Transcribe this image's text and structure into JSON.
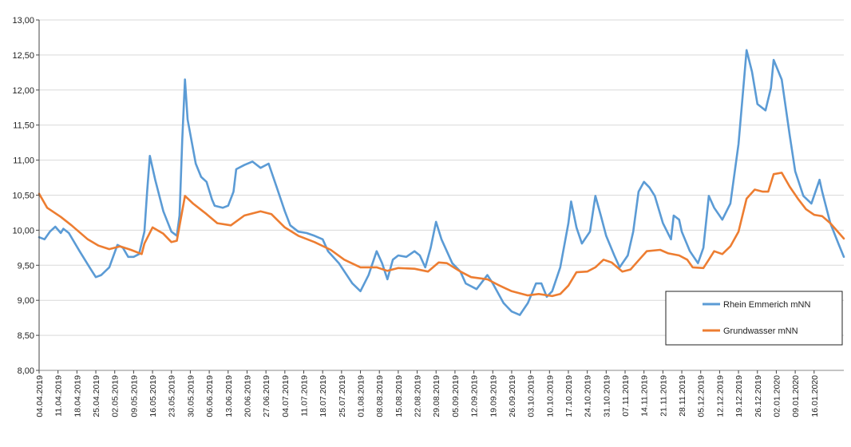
{
  "chart_data": {
    "type": "line",
    "title": "",
    "xlabel": "",
    "ylabel": "",
    "x_unit": "days since 04.04.2019",
    "xlim": [
      0,
      298
    ],
    "ylim": [
      8.0,
      13.0
    ],
    "y_ticks": [
      "8,00",
      "8,50",
      "9,00",
      "9,50",
      "10,00",
      "10,50",
      "11,00",
      "11,50",
      "12,00",
      "12,50",
      "13,00"
    ],
    "y_tick_values": [
      8,
      8.5,
      9,
      9.5,
      10,
      10.5,
      11,
      11.5,
      12,
      12.5,
      13
    ],
    "x_ticks": [
      "04.04.2019",
      "11.04.2019",
      "18.04.2019",
      "25.04.2019",
      "02.05.2019",
      "09.05.2019",
      "16.05.2019",
      "23.05.2019",
      "30.05.2019",
      "06.06.2019",
      "13.06.2019",
      "20.06.2019",
      "27.06.2019",
      "04.07.2019",
      "11.07.2019",
      "18.07.2019",
      "25.07.2019",
      "01.08.2019",
      "08.08.2019",
      "15.08.2019",
      "22.08.2019",
      "29.08.2019",
      "05.09.2019",
      "12.09.2019",
      "19.09.2019",
      "26.09.2019",
      "03.10.2019",
      "10.10.2019",
      "17.10.2019",
      "24.10.2019",
      "31.10.2019",
      "07.11.2019",
      "14.11.2019",
      "21.11.2019",
      "28.11.2019",
      "05.12.2019",
      "12.12.2019",
      "19.12.2019",
      "26.12.2019",
      "02.01.2020",
      "09.01.2020",
      "16.01.2020"
    ],
    "x_tick_step_days": 7,
    "grid": true,
    "legend_position": "bottom-right",
    "series": [
      {
        "name": "Rhein Emmerich mNN",
        "color": "#5b9bd5",
        "points": [
          [
            0,
            9.9
          ],
          [
            2,
            9.87
          ],
          [
            4,
            9.98
          ],
          [
            6,
            10.05
          ],
          [
            8,
            9.96
          ],
          [
            9,
            10.02
          ],
          [
            11,
            9.96
          ],
          [
            15,
            9.7
          ],
          [
            19,
            9.45
          ],
          [
            21,
            9.33
          ],
          [
            23,
            9.36
          ],
          [
            26,
            9.47
          ],
          [
            29,
            9.79
          ],
          [
            31,
            9.75
          ],
          [
            33,
            9.62
          ],
          [
            35,
            9.62
          ],
          [
            37,
            9.66
          ],
          [
            39,
            9.98
          ],
          [
            40,
            10.55
          ],
          [
            41,
            11.06
          ],
          [
            43,
            10.72
          ],
          [
            46,
            10.27
          ],
          [
            49,
            9.98
          ],
          [
            51,
            9.92
          ],
          [
            52,
            10.21
          ],
          [
            53,
            11.29
          ],
          [
            54,
            12.15
          ],
          [
            55,
            11.58
          ],
          [
            58,
            10.95
          ],
          [
            60,
            10.76
          ],
          [
            62,
            10.69
          ],
          [
            64,
            10.44
          ],
          [
            65,
            10.35
          ],
          [
            68,
            10.32
          ],
          [
            70,
            10.35
          ],
          [
            72,
            10.55
          ],
          [
            73,
            10.87
          ],
          [
            76,
            10.93
          ],
          [
            79,
            10.98
          ],
          [
            82,
            10.89
          ],
          [
            85,
            10.95
          ],
          [
            88,
            10.61
          ],
          [
            91,
            10.27
          ],
          [
            93,
            10.07
          ],
          [
            96,
            9.98
          ],
          [
            99,
            9.96
          ],
          [
            102,
            9.92
          ],
          [
            105,
            9.87
          ],
          [
            107,
            9.7
          ],
          [
            111,
            9.53
          ],
          [
            116,
            9.24
          ],
          [
            119,
            9.13
          ],
          [
            122,
            9.36
          ],
          [
            125,
            9.7
          ],
          [
            127,
            9.53
          ],
          [
            129,
            9.3
          ],
          [
            131,
            9.58
          ],
          [
            133,
            9.64
          ],
          [
            136,
            9.62
          ],
          [
            139,
            9.7
          ],
          [
            141,
            9.64
          ],
          [
            143,
            9.47
          ],
          [
            145,
            9.75
          ],
          [
            147,
            10.12
          ],
          [
            149,
            9.87
          ],
          [
            153,
            9.53
          ],
          [
            156,
            9.41
          ],
          [
            158,
            9.24
          ],
          [
            162,
            9.16
          ],
          [
            166,
            9.36
          ],
          [
            168,
            9.24
          ],
          [
            172,
            8.96
          ],
          [
            175,
            8.84
          ],
          [
            178,
            8.79
          ],
          [
            181,
            8.96
          ],
          [
            184,
            9.24
          ],
          [
            186,
            9.24
          ],
          [
            188,
            9.05
          ],
          [
            190,
            9.13
          ],
          [
            193,
            9.47
          ],
          [
            196,
            10.1
          ],
          [
            197,
            10.41
          ],
          [
            199,
            10.04
          ],
          [
            201,
            9.81
          ],
          [
            204,
            9.98
          ],
          [
            206,
            10.49
          ],
          [
            208,
            10.21
          ],
          [
            210,
            9.92
          ],
          [
            213,
            9.64
          ],
          [
            215,
            9.47
          ],
          [
            218,
            9.64
          ],
          [
            220,
            9.98
          ],
          [
            222,
            10.55
          ],
          [
            224,
            10.69
          ],
          [
            226,
            10.61
          ],
          [
            228,
            10.49
          ],
          [
            231,
            10.1
          ],
          [
            234,
            9.87
          ],
          [
            235,
            10.21
          ],
          [
            237,
            10.15
          ],
          [
            238,
            9.98
          ],
          [
            241,
            9.7
          ],
          [
            244,
            9.53
          ],
          [
            246,
            9.75
          ],
          [
            248,
            10.49
          ],
          [
            250,
            10.32
          ],
          [
            253,
            10.15
          ],
          [
            256,
            10.38
          ],
          [
            259,
            11.23
          ],
          [
            262,
            12.57
          ],
          [
            264,
            12.26
          ],
          [
            266,
            11.8
          ],
          [
            269,
            11.71
          ],
          [
            271,
            12.03
          ],
          [
            272,
            12.43
          ],
          [
            275,
            12.15
          ],
          [
            278,
            11.35
          ],
          [
            280,
            10.84
          ],
          [
            283,
            10.49
          ],
          [
            286,
            10.38
          ],
          [
            289,
            10.72
          ],
          [
            290,
            10.55
          ],
          [
            293,
            10.1
          ],
          [
            296,
            9.81
          ],
          [
            298,
            9.62
          ]
        ]
      },
      {
        "name": "Grundwasser mNN",
        "color": "#ed7d31",
        "points": [
          [
            0,
            10.52
          ],
          [
            3,
            10.32
          ],
          [
            8,
            10.19
          ],
          [
            12,
            10.07
          ],
          [
            18,
            9.87
          ],
          [
            22,
            9.78
          ],
          [
            26,
            9.73
          ],
          [
            30,
            9.77
          ],
          [
            34,
            9.72
          ],
          [
            38,
            9.66
          ],
          [
            39,
            9.81
          ],
          [
            42,
            10.04
          ],
          [
            46,
            9.95
          ],
          [
            49,
            9.83
          ],
          [
            51,
            9.85
          ],
          [
            54,
            10.49
          ],
          [
            57,
            10.38
          ],
          [
            62,
            10.23
          ],
          [
            66,
            10.1
          ],
          [
            71,
            10.07
          ],
          [
            76,
            10.21
          ],
          [
            82,
            10.27
          ],
          [
            86,
            10.23
          ],
          [
            91,
            10.04
          ],
          [
            96,
            9.92
          ],
          [
            102,
            9.83
          ],
          [
            108,
            9.72
          ],
          [
            113,
            9.58
          ],
          [
            119,
            9.47
          ],
          [
            125,
            9.47
          ],
          [
            129,
            9.42
          ],
          [
            133,
            9.46
          ],
          [
            139,
            9.45
          ],
          [
            144,
            9.41
          ],
          [
            148,
            9.54
          ],
          [
            151,
            9.53
          ],
          [
            156,
            9.41
          ],
          [
            160,
            9.33
          ],
          [
            166,
            9.3
          ],
          [
            170,
            9.22
          ],
          [
            175,
            9.13
          ],
          [
            181,
            9.07
          ],
          [
            185,
            9.09
          ],
          [
            190,
            9.06
          ],
          [
            193,
            9.09
          ],
          [
            196,
            9.21
          ],
          [
            199,
            9.4
          ],
          [
            203,
            9.41
          ],
          [
            206,
            9.47
          ],
          [
            209,
            9.58
          ],
          [
            212,
            9.54
          ],
          [
            216,
            9.41
          ],
          [
            219,
            9.44
          ],
          [
            222,
            9.57
          ],
          [
            225,
            9.7
          ],
          [
            230,
            9.72
          ],
          [
            233,
            9.67
          ],
          [
            237,
            9.64
          ],
          [
            240,
            9.58
          ],
          [
            242,
            9.47
          ],
          [
            246,
            9.46
          ],
          [
            248,
            9.58
          ],
          [
            250,
            9.7
          ],
          [
            253,
            9.66
          ],
          [
            256,
            9.77
          ],
          [
            259,
            9.98
          ],
          [
            262,
            10.45
          ],
          [
            265,
            10.58
          ],
          [
            268,
            10.55
          ],
          [
            270,
            10.55
          ],
          [
            272,
            10.8
          ],
          [
            275,
            10.82
          ],
          [
            278,
            10.62
          ],
          [
            281,
            10.45
          ],
          [
            284,
            10.3
          ],
          [
            287,
            10.22
          ],
          [
            290,
            10.2
          ],
          [
            293,
            10.1
          ],
          [
            298,
            9.88
          ]
        ]
      }
    ]
  }
}
